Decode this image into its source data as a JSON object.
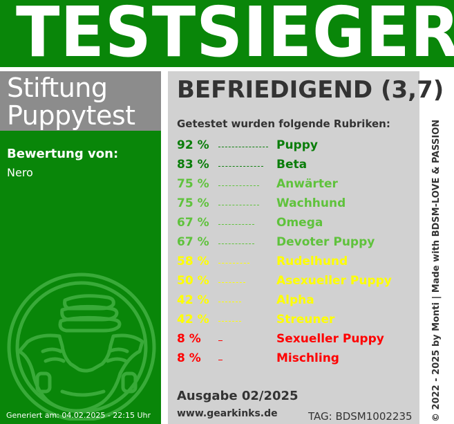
{
  "banner": {
    "title": "TESTSIEGER"
  },
  "brand": {
    "line1": "Stiftung",
    "line2": "Puppytest"
  },
  "rating_by": {
    "label": "Bewertung von:",
    "name": "Nero"
  },
  "generated": "Generiert am: 04.02.2025 - 22:15 Uhr",
  "result": {
    "verdict": "BEFRIEDIGEND (3,7)"
  },
  "rubrics": {
    "heading": "Getestet wurden folgende Rubriken:",
    "items": [
      {
        "percent": "92 %",
        "label": "Puppy",
        "value": 92,
        "color": "#0a7d0a"
      },
      {
        "percent": "83 %",
        "label": "Beta",
        "value": 83,
        "color": "#0a7d0a"
      },
      {
        "percent": "75 %",
        "label": "Anwärter",
        "value": 75,
        "color": "#5fc23c"
      },
      {
        "percent": "75 %",
        "label": "Wachhund",
        "value": 75,
        "color": "#5fc23c"
      },
      {
        "percent": "67 %",
        "label": "Omega",
        "value": 67,
        "color": "#5fc23c"
      },
      {
        "percent": "67 %",
        "label": "Devoter Puppy",
        "value": 67,
        "color": "#5fc23c"
      },
      {
        "percent": "58 %",
        "label": "Rudelhund",
        "value": 58,
        "color": "#ffff00"
      },
      {
        "percent": "50 %",
        "label": "Asexueller Puppy",
        "value": 50,
        "color": "#ffff00"
      },
      {
        "percent": "42 %",
        "label": "Alpha",
        "value": 42,
        "color": "#ffff00"
      },
      {
        "percent": "42 %",
        "label": "Streuner",
        "value": 42,
        "color": "#ffff00"
      },
      {
        "percent": "8 %",
        "label": "Sexueller Puppy",
        "value": 8,
        "color": "#ff0000"
      },
      {
        "percent": "8 %",
        "label": "Mischling",
        "value": 8,
        "color": "#ff0000"
      }
    ]
  },
  "footer": {
    "issue": "Ausgabe 02/2025",
    "website": "www.gearkinks.de",
    "tag": "TAG: BDSM1002235"
  },
  "side_credit": "© 2022 - 2025 by Monti | Made with BDSM-LOVE & PASSION",
  "icons": {
    "logo": "diaper-stack-icon"
  },
  "colors": {
    "brand_green": "#098609",
    "brand_gray": "#8c8c8c",
    "panel_gray": "#d1d1d1",
    "text_dark": "#333333"
  }
}
